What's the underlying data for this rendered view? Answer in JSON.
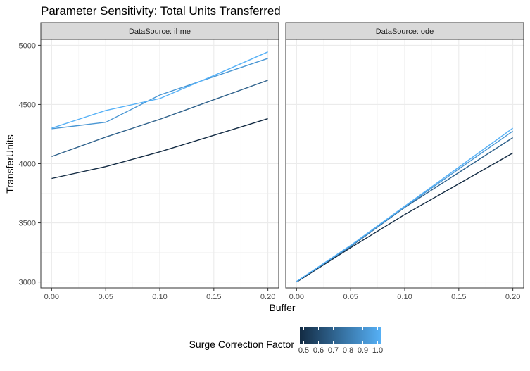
{
  "chart_data": {
    "type": "line",
    "title": "Parameter Sensitivity: Total Units Transferred",
    "xlabel": "Buffer",
    "ylabel": "TransferUnits",
    "ylim": [
      2950,
      5050
    ],
    "xlim": [
      -0.01,
      0.21
    ],
    "x_ticks": [
      0,
      0.05,
      0.1,
      0.15,
      0.2
    ],
    "x_tick_labels": [
      "0.00",
      "0.05",
      "0.10",
      "0.15",
      "0.20"
    ],
    "y_ticks": [
      3000,
      3500,
      4000,
      4500,
      5000
    ],
    "y_tick_labels": [
      "3000",
      "3500",
      "4000",
      "4500",
      "5000"
    ],
    "grid": true,
    "legend": {
      "title": "Surge Correction Factor",
      "placement": "bottom",
      "type": "colorbar",
      "range": [
        0.5,
        1.0
      ],
      "ticks": [
        "0.5",
        "0.6",
        "0.7",
        "0.8",
        "0.9",
        "1.0"
      ],
      "low_color": "#132B43",
      "high_color": "#56B1F7"
    },
    "panels": [
      {
        "label": "DataSource: ihme",
        "x": [
          0,
          0.05,
          0.1,
          0.15,
          0.2
        ],
        "series": [
          {
            "color_value": 0.5,
            "values": [
              3875,
              3975,
              4100,
              4240,
              4380
            ]
          },
          {
            "color_value": 0.7,
            "values": [
              4060,
              4225,
              4375,
              4540,
              4705
            ]
          },
          {
            "color_value": 0.9,
            "values": [
              4295,
              4350,
              4580,
              4735,
              4890
            ]
          },
          {
            "color_value": 1.0,
            "values": [
              4300,
              4450,
              4550,
              4745,
              4945
            ]
          }
        ]
      },
      {
        "label": "DataSource: ode",
        "x": [
          0,
          0.05,
          0.1,
          0.15,
          0.2
        ],
        "series": [
          {
            "color_value": 0.5,
            "values": [
              3000,
              3290,
              3570,
              3830,
              4090
            ]
          },
          {
            "color_value": 0.7,
            "values": [
              3005,
              3300,
              3630,
              3925,
              4220
            ]
          },
          {
            "color_value": 0.9,
            "values": [
              3005,
              3305,
              3635,
              3955,
              4275
            ]
          },
          {
            "color_value": 1.0,
            "values": [
              3005,
              3310,
              3640,
              3970,
              4300
            ]
          }
        ]
      }
    ]
  }
}
